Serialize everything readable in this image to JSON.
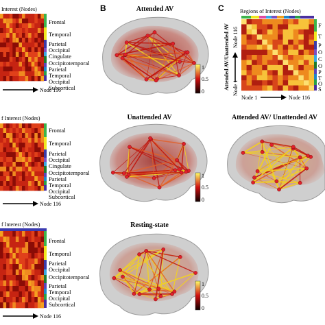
{
  "panels": {
    "A": {
      "letter": ""
    },
    "B": {
      "letter": "B"
    },
    "C": {
      "letter": "C"
    }
  },
  "matrices": [
    {
      "header": "Interest (Nodes)",
      "footer": "Node 116",
      "rois": [
        "Frontal",
        "Temporal",
        "Parietal",
        "Occipital",
        "Cingulate",
        "Occipitotemporal",
        "Parietal",
        "Temporal",
        "Occipital",
        "Subcortical"
      ]
    },
    {
      "header": "f Interest (Nodes)",
      "footer": "Node 116",
      "rois": [
        "Frontal",
        "Temporal",
        "Parietal",
        "Occipital",
        "Cingulate",
        "Occipitotemporal",
        "Parietal",
        "Temporal",
        "Occipital",
        "Subcortical"
      ]
    },
    {
      "header": "f Interest (Nodes)",
      "footer": "Node 116",
      "rois": [
        "Frontal",
        "Temporal",
        "Parietal",
        "Occipital",
        "Occipitotemporal",
        "Parietal",
        "Temporal",
        "Occipital",
        "Subcortical"
      ]
    }
  ],
  "brains": [
    {
      "title": "Attended AV",
      "colorbar": {
        "max": "1",
        "mid": "0.5",
        "min": "0"
      }
    },
    {
      "title": "Unattended AV",
      "colorbar": {
        "max": "1",
        "mid": "0.5",
        "min": "0"
      }
    },
    {
      "title": "Resting-state",
      "colorbar": {
        "max": "1",
        "mid": "0.5",
        "min": "0"
      }
    }
  ],
  "panel_c": {
    "header": "Regions of Interest (Nodes)",
    "y_label": "Attended AV/Unattended AV",
    "node_top": "Node 116",
    "node_left": "Node 1",
    "node_bottom": "Node 1",
    "node_right": "Node 116",
    "legend_letters": [
      "F",
      "T",
      "P",
      "O",
      "C",
      "O",
      "P",
      "T",
      "O",
      "S"
    ],
    "brain_title": "Attended AV/ Unattended AV"
  },
  "colors": {
    "matrix_bg": "#d42a10",
    "matrix_dark": "#8a0c06",
    "matrix_hot": "#f5a020",
    "brain_shell": "#cfcfcf",
    "edge_red": "#c0140c",
    "edge_yellow": "#f2d21e",
    "node_red": "#e0202a",
    "colorbar_top": "#ffff66",
    "colorbar_mid": "#d01010",
    "colorbar_bottom": "#100000",
    "roi_band": [
      "#3db34a",
      "#f0e61e",
      "#3a3aa8",
      "#7b4ec0",
      "#38a8e0",
      "#1d7a2c",
      "#5a46b8",
      "#1e86c8",
      "#28a048",
      "#4b2fa0"
    ]
  }
}
